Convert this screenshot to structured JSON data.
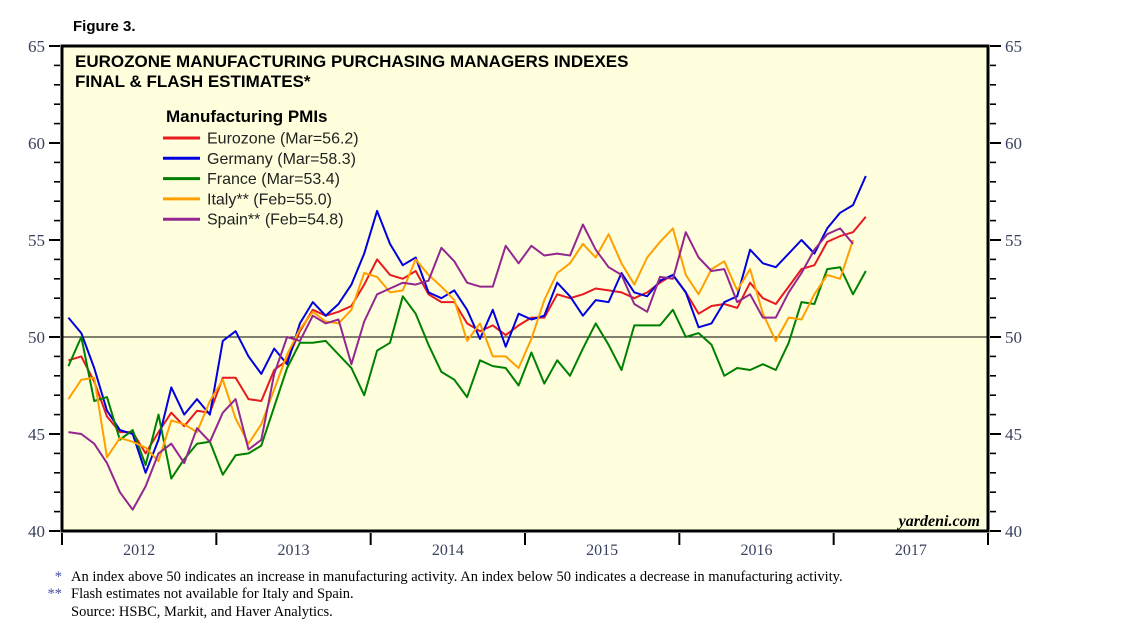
{
  "figure_label": "Figure 3.",
  "watermark": "yardeni.com",
  "colors": {
    "plot_bg": "#ffffde",
    "frame": "#000000",
    "axis_label": "#39425e",
    "footnote_marker": "#4650a0",
    "title_text": "#000000",
    "legend_text": "#222222"
  },
  "chart_data": {
    "type": "line",
    "title_lines": [
      "EUROZONE MANUFACTURING PURCHASING MANAGERS INDEXES",
      "FINAL & FLASH ESTIMATES*"
    ],
    "legend_title": "Manufacturing PMIs",
    "legend_position": "upper-left-inside",
    "x_start": "2012-01",
    "x_end_axis": "2017-12",
    "x_year_labels": [
      "2012",
      "2013",
      "2014",
      "2015",
      "2016",
      "2017"
    ],
    "ylim": [
      40,
      65
    ],
    "y_major_ticks": [
      40,
      45,
      50,
      55,
      60,
      65
    ],
    "y_minor_step": 1,
    "reference_line": 50,
    "grid": false,
    "series": [
      {
        "name": "Eurozone",
        "label": "Eurozone (Mar=56.2)",
        "color": "#e8191f",
        "values": [
          48.8,
          49.0,
          47.7,
          45.9,
          45.1,
          45.1,
          44.0,
          45.1,
          46.1,
          45.4,
          46.2,
          46.1,
          47.9,
          47.9,
          46.8,
          46.7,
          48.3,
          48.8,
          50.3,
          51.4,
          51.1,
          51.3,
          51.6,
          52.7,
          54.0,
          53.2,
          53.0,
          53.4,
          52.2,
          51.8,
          51.8,
          50.7,
          50.3,
          50.6,
          50.1,
          50.6,
          51.0,
          51.0,
          52.2,
          52.0,
          52.2,
          52.5,
          52.4,
          52.3,
          52.0,
          52.3,
          52.8,
          53.2,
          52.3,
          51.2,
          51.6,
          51.7,
          51.5,
          52.8,
          52.0,
          51.7,
          52.6,
          53.5,
          53.7,
          54.9,
          55.2,
          55.4,
          56.2
        ]
      },
      {
        "name": "Germany",
        "label": "Germany (Mar=58.3)",
        "color": "#0000e0",
        "values": [
          51.0,
          50.2,
          48.4,
          46.2,
          45.2,
          45.0,
          43.0,
          44.7,
          47.4,
          46.0,
          46.8,
          46.0,
          49.8,
          50.3,
          49.0,
          48.1,
          49.4,
          48.6,
          50.7,
          51.8,
          51.1,
          51.7,
          52.7,
          54.3,
          56.5,
          54.8,
          53.7,
          54.1,
          52.3,
          52.0,
          52.4,
          51.4,
          49.9,
          51.4,
          49.5,
          51.2,
          50.9,
          51.1,
          52.8,
          52.1,
          51.1,
          51.9,
          51.8,
          53.3,
          52.3,
          52.1,
          52.9,
          53.2,
          52.3,
          50.5,
          50.7,
          51.8,
          52.1,
          54.5,
          53.8,
          53.6,
          54.3,
          55.0,
          54.3,
          55.6,
          56.4,
          56.8,
          58.3
        ]
      },
      {
        "name": "France",
        "label": "France (Mar=53.4)",
        "color": "#008000",
        "values": [
          48.5,
          50.0,
          46.7,
          46.9,
          44.7,
          45.2,
          43.4,
          46.0,
          42.7,
          43.7,
          44.5,
          44.6,
          42.9,
          43.9,
          44.0,
          44.4,
          46.4,
          48.4,
          49.7,
          49.7,
          49.8,
          49.1,
          48.4,
          47.0,
          49.3,
          49.7,
          52.1,
          51.2,
          49.6,
          48.2,
          47.8,
          46.9,
          48.8,
          48.5,
          48.4,
          47.5,
          49.2,
          47.6,
          48.8,
          48.0,
          49.4,
          50.7,
          49.6,
          48.3,
          50.6,
          50.6,
          50.6,
          51.4,
          50.0,
          50.2,
          49.6,
          48.0,
          48.4,
          48.3,
          48.6,
          48.3,
          49.7,
          51.8,
          51.7,
          53.5,
          53.6,
          52.2,
          53.4
        ]
      },
      {
        "name": "Italy",
        "label": "Italy** (Feb=55.0)",
        "color": "#ffa000",
        "values": [
          46.8,
          47.8,
          47.9,
          43.8,
          44.8,
          44.6,
          44.3,
          43.6,
          45.7,
          45.5,
          45.1,
          46.7,
          47.8,
          45.8,
          44.5,
          45.5,
          47.3,
          49.1,
          50.4,
          51.3,
          50.8,
          50.7,
          51.4,
          53.3,
          53.1,
          52.3,
          52.4,
          54.0,
          53.2,
          52.6,
          51.9,
          49.8,
          50.7,
          49.0,
          49.0,
          48.4,
          49.9,
          51.9,
          53.3,
          53.8,
          54.8,
          54.1,
          55.3,
          53.8,
          52.7,
          54.1,
          54.9,
          55.6,
          53.2,
          52.2,
          53.5,
          53.9,
          52.4,
          53.5,
          51.2,
          49.8,
          51.0,
          50.9,
          52.2,
          53.2,
          53.0,
          55.0
        ]
      },
      {
        "name": "Spain",
        "label": "Spain** (Feb=54.8)",
        "color": "#93278f",
        "values": [
          45.1,
          45.0,
          44.5,
          43.5,
          42.0,
          41.1,
          42.3,
          44.0,
          44.5,
          43.5,
          45.3,
          44.6,
          46.1,
          46.8,
          44.2,
          44.7,
          48.1,
          50.0,
          49.8,
          51.1,
          50.7,
          50.9,
          48.6,
          50.8,
          52.2,
          52.5,
          52.8,
          52.7,
          52.9,
          54.6,
          53.9,
          52.8,
          52.6,
          52.6,
          54.7,
          53.8,
          54.7,
          54.2,
          54.3,
          54.2,
          55.8,
          54.5,
          53.6,
          53.2,
          51.7,
          51.3,
          53.1,
          53.0,
          55.4,
          54.1,
          53.4,
          53.5,
          51.8,
          52.2,
          51.0,
          51.0,
          52.3,
          53.3,
          54.5,
          55.3,
          55.6,
          54.8
        ]
      }
    ]
  },
  "footnotes": [
    {
      "marker": "*",
      "text": "An index above 50 indicates an increase in manufacturing activity. An index below 50 indicates a decrease in manufacturing activity."
    },
    {
      "marker": "**",
      "text": "Flash estimates not available for Italy and Spain."
    },
    {
      "marker": "",
      "text": "Source: HSBC, Markit, and Haver Analytics."
    }
  ]
}
